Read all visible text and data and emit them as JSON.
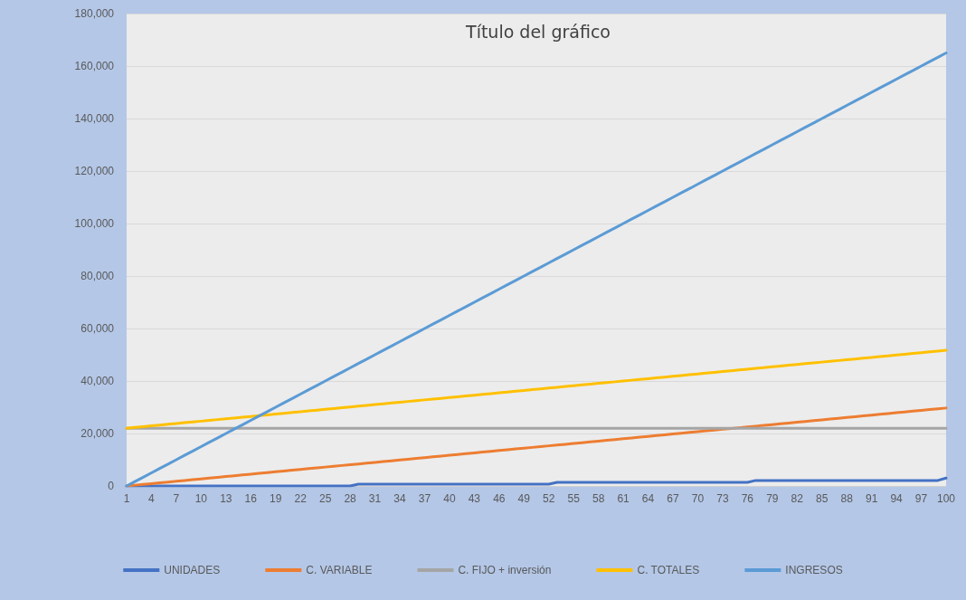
{
  "chart_data": {
    "type": "line",
    "title": "Título del gráfico",
    "categories": [
      "1",
      null,
      null,
      "4",
      null,
      null,
      "7",
      null,
      null,
      "10",
      null,
      null,
      "13",
      null,
      null,
      "16",
      null,
      null,
      "19",
      null,
      null,
      "22",
      null,
      null,
      "25",
      null,
      null,
      "28",
      null,
      null,
      "31",
      null,
      null,
      "34",
      null,
      null,
      "37",
      null,
      null,
      "40",
      null,
      null,
      "43",
      null,
      null,
      "46",
      null,
      null,
      "49",
      null,
      null,
      "52",
      null,
      null,
      "55",
      null,
      null,
      "58",
      null,
      null,
      "61",
      null,
      null,
      "64",
      null,
      null,
      "67",
      null,
      null,
      "70",
      null,
      null,
      "73",
      null,
      null,
      "76",
      null,
      null,
      "79",
      null,
      null,
      "82",
      null,
      null,
      "85",
      null,
      null,
      "88",
      null,
      null,
      "91",
      null,
      null,
      "94",
      null,
      null,
      "97",
      null,
      null,
      "100"
    ],
    "series": [
      {
        "name": "UNIDADES",
        "color": "#4472c4",
        "values": [
          0,
          0,
          0,
          0,
          0,
          0,
          0,
          0,
          0,
          0,
          0,
          0,
          0,
          0,
          0,
          0,
          0,
          0,
          0,
          0,
          0,
          0,
          0,
          0,
          0,
          0,
          0,
          0,
          700,
          700,
          700,
          700,
          700,
          700,
          700,
          700,
          700,
          700,
          700,
          700,
          700,
          700,
          700,
          700,
          700,
          700,
          700,
          700,
          700,
          700,
          700,
          700,
          1400,
          1400,
          1400,
          1400,
          1400,
          1400,
          1400,
          1400,
          1400,
          1400,
          1400,
          1400,
          1400,
          1400,
          1400,
          1400,
          1400,
          1400,
          1400,
          1400,
          1400,
          1400,
          1400,
          1400,
          2100,
          2100,
          2100,
          2100,
          2100,
          2100,
          2100,
          2100,
          2100,
          2100,
          2100,
          2100,
          2100,
          2100,
          2100,
          2100,
          2100,
          2100,
          2100,
          2100,
          2100,
          2100,
          2100,
          3000
        ]
      },
      {
        "name": "C. VARIABLE",
        "color": "#ed7d31",
        "values": [
          0,
          300,
          600,
          900,
          1200,
          1500,
          1800,
          2100,
          2400,
          2700,
          3000,
          3300,
          3600,
          3900,
          4200,
          4500,
          4800,
          5100,
          5400,
          5700,
          6000,
          6300,
          6600,
          6900,
          7200,
          7500,
          7800,
          8100,
          8400,
          8700,
          9000,
          9300,
          9600,
          9900,
          10200,
          10500,
          10800,
          11100,
          11400,
          11700,
          12000,
          12300,
          12600,
          12900,
          13200,
          13500,
          13800,
          14100,
          14400,
          14700,
          15000,
          15300,
          15600,
          15900,
          16200,
          16500,
          16800,
          17100,
          17400,
          17700,
          18000,
          18300,
          18600,
          18900,
          19200,
          19500,
          19800,
          20100,
          20400,
          20700,
          21000,
          21300,
          21600,
          21900,
          22200,
          22500,
          22800,
          23100,
          23400,
          23700,
          24000,
          24300,
          24600,
          24900,
          25200,
          25500,
          25800,
          26100,
          26400,
          26700,
          27000,
          27300,
          27600,
          27900,
          28200,
          28500,
          28800,
          29100,
          29400,
          29700
        ]
      },
      {
        "name": "C. FIJO + inversión",
        "color": "#a5a5a5",
        "values": [
          22000,
          22000,
          22000,
          22000,
          22000,
          22000,
          22000,
          22000,
          22000,
          22000,
          22000,
          22000,
          22000,
          22000,
          22000,
          22000,
          22000,
          22000,
          22000,
          22000,
          22000,
          22000,
          22000,
          22000,
          22000,
          22000,
          22000,
          22000,
          22000,
          22000,
          22000,
          22000,
          22000,
          22000,
          22000,
          22000,
          22000,
          22000,
          22000,
          22000,
          22000,
          22000,
          22000,
          22000,
          22000,
          22000,
          22000,
          22000,
          22000,
          22000,
          22000,
          22000,
          22000,
          22000,
          22000,
          22000,
          22000,
          22000,
          22000,
          22000,
          22000,
          22000,
          22000,
          22000,
          22000,
          22000,
          22000,
          22000,
          22000,
          22000,
          22000,
          22000,
          22000,
          22000,
          22000,
          22000,
          22000,
          22000,
          22000,
          22000,
          22000,
          22000,
          22000,
          22000,
          22000,
          22000,
          22000,
          22000,
          22000,
          22000,
          22000,
          22000,
          22000,
          22000,
          22000,
          22000,
          22000,
          22000,
          22000,
          22000
        ]
      },
      {
        "name": "C. TOTALES",
        "color": "#ffc000",
        "values": [
          22000,
          22300,
          22600,
          22900,
          23200,
          23500,
          23800,
          24100,
          24400,
          24700,
          25000,
          25300,
          25600,
          25900,
          26200,
          26500,
          26800,
          27100,
          27400,
          27700,
          28000,
          28300,
          28600,
          28900,
          29200,
          29500,
          29800,
          30100,
          30400,
          30700,
          31000,
          31300,
          31600,
          31900,
          32200,
          32500,
          32800,
          33100,
          33400,
          33700,
          34000,
          34300,
          34600,
          34900,
          35200,
          35500,
          35800,
          36100,
          36400,
          36700,
          37000,
          37300,
          37600,
          37900,
          38200,
          38500,
          38800,
          39100,
          39400,
          39700,
          40000,
          40300,
          40600,
          40900,
          41200,
          41500,
          41800,
          42100,
          42400,
          42700,
          43000,
          43300,
          43600,
          43900,
          44200,
          44500,
          44800,
          45100,
          45400,
          45700,
          46000,
          46300,
          46600,
          46900,
          47200,
          47500,
          47800,
          48100,
          48400,
          48700,
          49000,
          49300,
          49600,
          49900,
          50200,
          50500,
          50800,
          51100,
          51400,
          51700
        ]
      },
      {
        "name": "INGRESOS",
        "color": "#5b9bd5",
        "values": [
          0,
          1700,
          3300,
          5000,
          6700,
          8300,
          10000,
          11700,
          13300,
          15000,
          16700,
          18300,
          20000,
          21700,
          23300,
          25000,
          26700,
          28300,
          30000,
          31700,
          33300,
          35000,
          36700,
          38300,
          40000,
          41700,
          43300,
          45000,
          46700,
          48300,
          50000,
          51700,
          53300,
          55000,
          56700,
          58300,
          60000,
          61700,
          63300,
          65000,
          66700,
          68300,
          70000,
          71700,
          73300,
          75000,
          76700,
          78300,
          80000,
          81700,
          83300,
          85000,
          86700,
          88300,
          90000,
          91700,
          93300,
          95000,
          96700,
          98300,
          100000,
          101700,
          103300,
          105000,
          106700,
          108300,
          110000,
          111700,
          113300,
          115000,
          116700,
          118300,
          120000,
          121700,
          123300,
          125000,
          126700,
          128300,
          130000,
          131700,
          133300,
          135000,
          136700,
          138300,
          140000,
          141700,
          143300,
          145000,
          146700,
          148300,
          150000,
          151700,
          153300,
          155000,
          156700,
          158300,
          160000,
          161700,
          163300,
          165000
        ]
      }
    ],
    "ylim": [
      0,
      180000
    ],
    "yticks": [
      0,
      {
        "value": 20000,
        "label": "20,000"
      },
      {
        "value": 40000,
        "label": "40,000"
      },
      {
        "value": 60000,
        "label": "60,000"
      },
      {
        "value": 80000,
        "label": "80,000"
      },
      {
        "value": 100000,
        "label": "100,000"
      },
      {
        "value": 120000,
        "label": "120,000"
      },
      {
        "value": 140000,
        "label": "140,000"
      },
      {
        "value": 160000,
        "label": "160,000"
      },
      {
        "value": 180000,
        "label": "180,000"
      }
    ],
    "grid": "y",
    "legend": "bottom",
    "marker": "none",
    "line_style": "solid"
  }
}
